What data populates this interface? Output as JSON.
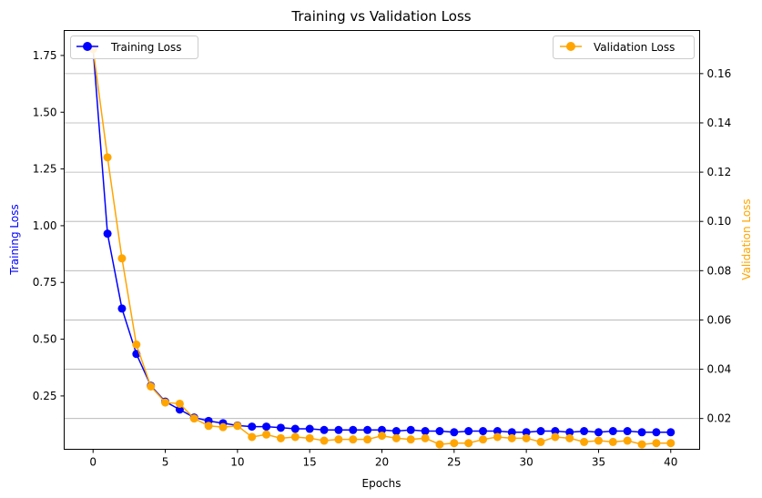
{
  "chart_data": {
    "type": "line",
    "title": "Training vs Validation Loss",
    "xlabel": "Epochs",
    "ylabel_left": "Training Loss",
    "ylabel_right": "Validation Loss",
    "xlim": [
      -2,
      42
    ],
    "ylim_left": [
      0.015,
      1.86
    ],
    "ylim_right": [
      0.0075,
      0.1775
    ],
    "x_ticks": [
      "0",
      "5",
      "10",
      "15",
      "20",
      "25",
      "30",
      "35",
      "40"
    ],
    "y_ticks_left": [
      "0.25",
      "0.50",
      "0.75",
      "1.00",
      "1.25",
      "1.50",
      "1.75"
    ],
    "y_ticks_right": [
      "0.02",
      "0.04",
      "0.06",
      "0.08",
      "0.10",
      "0.12",
      "0.14",
      "0.16"
    ],
    "grid": "horizontal lines at right-axis ticks",
    "x": [
      0,
      1,
      2,
      3,
      4,
      5,
      6,
      7,
      8,
      9,
      10,
      11,
      12,
      13,
      14,
      15,
      16,
      17,
      18,
      19,
      20,
      21,
      22,
      23,
      24,
      25,
      26,
      27,
      28,
      29,
      30,
      31,
      32,
      33,
      34,
      35,
      36,
      37,
      38,
      39,
      40
    ],
    "series": [
      {
        "name": "Training Loss",
        "axis": "left",
        "color": "#0000ff",
        "values": [
          1.78,
          0.965,
          0.635,
          0.435,
          0.295,
          0.225,
          0.19,
          0.155,
          0.14,
          0.13,
          0.12,
          0.115,
          0.115,
          0.11,
          0.105,
          0.105,
          0.1,
          0.1,
          0.1,
          0.1,
          0.1,
          0.095,
          0.1,
          0.095,
          0.095,
          0.09,
          0.095,
          0.095,
          0.095,
          0.09,
          0.09,
          0.095,
          0.095,
          0.09,
          0.095,
          0.09,
          0.095,
          0.095,
          0.09,
          0.09,
          0.09
        ]
      },
      {
        "name": "Validation Loss",
        "axis": "right",
        "color": "#ffa500",
        "values": [
          0.17,
          0.126,
          0.085,
          0.05,
          0.033,
          0.0265,
          0.026,
          0.02,
          0.017,
          0.0165,
          0.017,
          0.0125,
          0.0135,
          0.012,
          0.0125,
          0.012,
          0.011,
          0.0115,
          0.0115,
          0.0115,
          0.013,
          0.012,
          0.0115,
          0.012,
          0.0095,
          0.01,
          0.01,
          0.0115,
          0.0125,
          0.012,
          0.012,
          0.0105,
          0.0125,
          0.012,
          0.0105,
          0.011,
          0.0105,
          0.011,
          0.0095,
          0.01,
          0.01
        ]
      }
    ],
    "legend_left": "top-left",
    "legend_right": "top-right"
  }
}
